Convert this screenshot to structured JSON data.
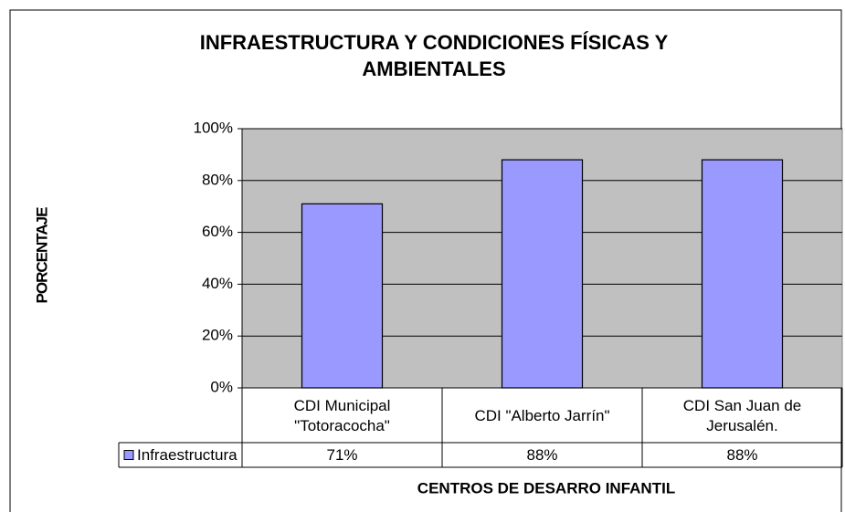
{
  "chart_data": {
    "type": "bar",
    "title": "INFRAESTRUCTURA Y CONDICIONES FÍSICAS Y AMBIENTALES",
    "y_label": "PORCENTAJE",
    "x_label": "CENTROS DE DESARRO INFANTIL",
    "categories": [
      "CDI Municipal \"Totoracocha\"",
      "CDI \"Alberto Jarrín\"",
      "CDI San Juan de Jerusalén."
    ],
    "series": [
      {
        "name": "Infraestructura",
        "color": "#9999ff",
        "values": [
          71,
          88,
          88
        ],
        "value_labels": [
          "71%",
          "88%",
          "88%"
        ]
      }
    ],
    "ylim": [
      0,
      100
    ],
    "yticks": [
      {
        "value": 0,
        "label": "0%"
      },
      {
        "value": 20,
        "label": "20%"
      },
      {
        "value": 40,
        "label": "40%"
      },
      {
        "value": 60,
        "label": "60%"
      },
      {
        "value": 80,
        "label": "80%"
      },
      {
        "value": 100,
        "label": "100%"
      }
    ],
    "grid": true
  }
}
